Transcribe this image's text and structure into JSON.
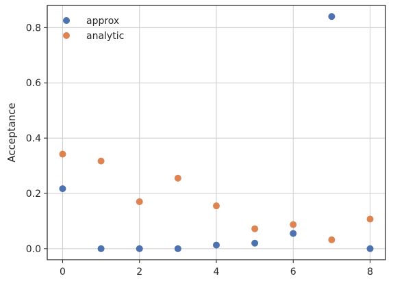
{
  "chart_data": {
    "type": "scatter",
    "title": "",
    "xlabel": "",
    "ylabel": "Acceptance",
    "xlim": [
      -0.4,
      8.4
    ],
    "ylim": [
      -0.04,
      0.88
    ],
    "xticks": [
      0,
      2,
      4,
      6,
      8
    ],
    "xtick_labels": [
      "0",
      "2",
      "4",
      "6",
      "8"
    ],
    "yticks": [
      0.0,
      0.2,
      0.4,
      0.6,
      0.8
    ],
    "ytick_labels": [
      "0.0",
      "0.2",
      "0.4",
      "0.6",
      "0.8"
    ],
    "grid": true,
    "legend_position": "top-left",
    "series": [
      {
        "name": "approx",
        "color": "#4c72b0",
        "x": [
          0,
          1,
          2,
          3,
          4,
          5,
          6,
          7,
          8
        ],
        "y": [
          0.217,
          0.0,
          0.0,
          0.0,
          0.013,
          0.02,
          0.055,
          0.84,
          0.0
        ]
      },
      {
        "name": "analytic",
        "color": "#dd8452",
        "x": [
          0,
          1,
          2,
          3,
          4,
          5,
          6,
          7,
          8
        ],
        "y": [
          0.342,
          0.317,
          0.17,
          0.255,
          0.155,
          0.072,
          0.087,
          0.032,
          0.107
        ]
      }
    ]
  }
}
